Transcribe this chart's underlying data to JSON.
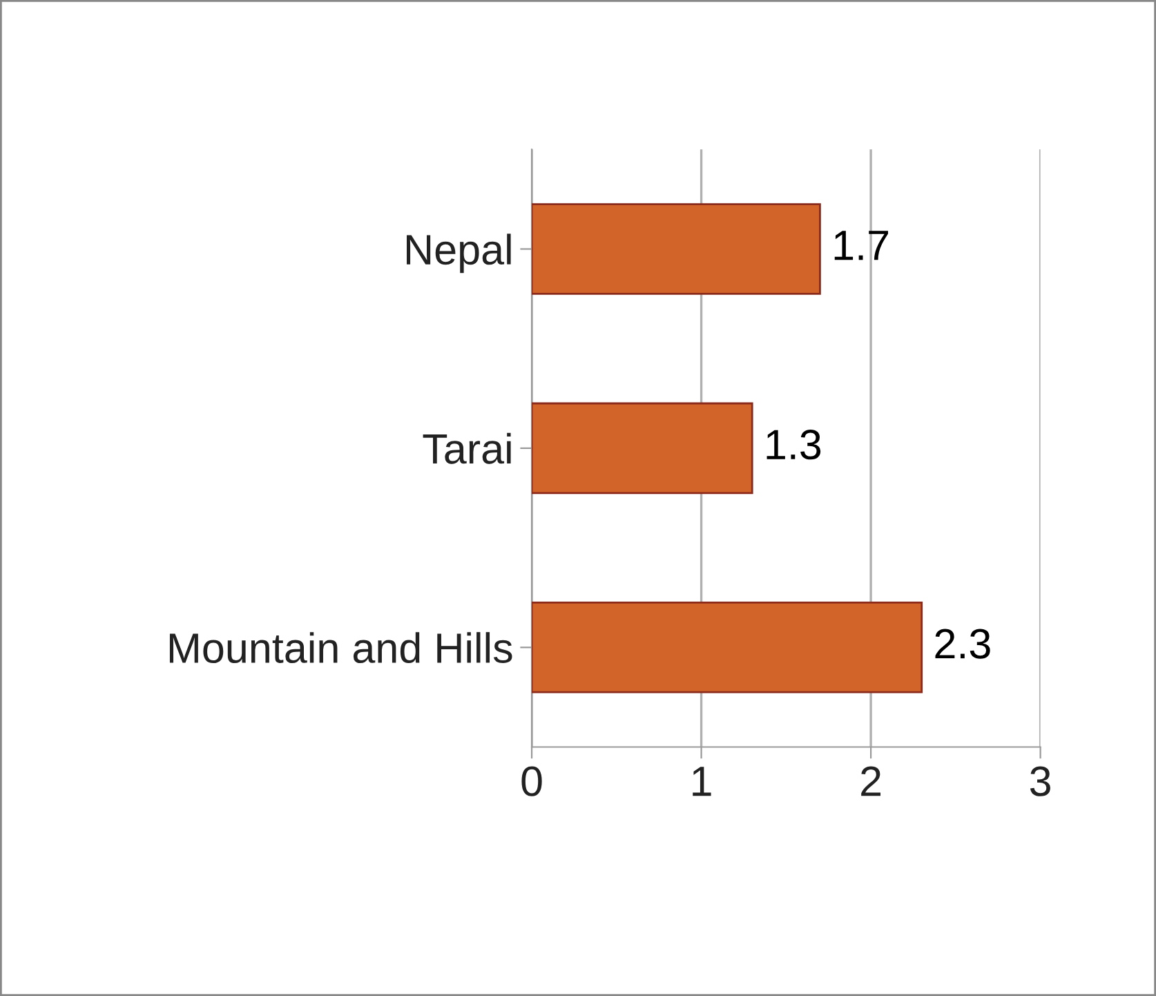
{
  "chart_data": {
    "type": "bar",
    "orientation": "horizontal",
    "categories": [
      "Nepal",
      "Tarai",
      "Mountain and Hills"
    ],
    "values": [
      1.7,
      1.3,
      2.3
    ],
    "color": "#d2642a",
    "xlim": [
      0,
      3
    ],
    "xticks": [
      0,
      1,
      2,
      3
    ],
    "grid": "x",
    "data_labels": true,
    "legend": false
  }
}
